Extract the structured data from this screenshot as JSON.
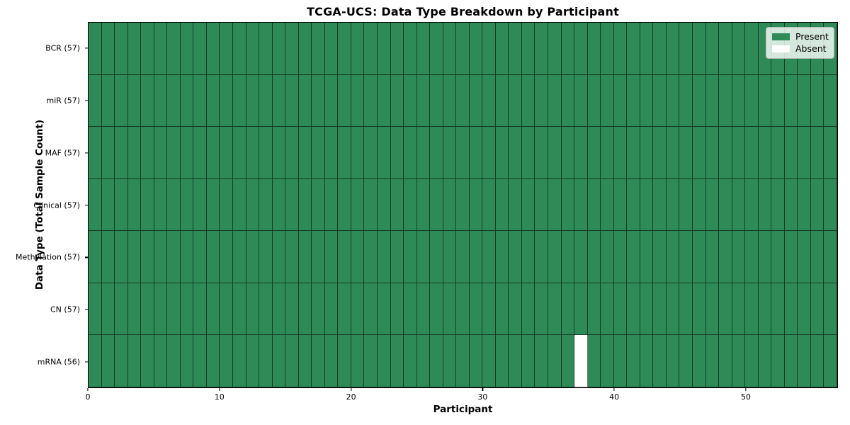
{
  "chart_data": {
    "type": "heatmap",
    "title": "TCGA-UCS: Data Type Breakdown by Participant",
    "xlabel": "Participant",
    "ylabel": "Data Type (Total Sample Count)",
    "xlim": [
      0,
      57
    ],
    "n_participants": 57,
    "x_ticks": [
      0,
      10,
      20,
      30,
      40,
      50
    ],
    "grid": true,
    "rows": [
      {
        "label": "BCR (57)",
        "total_samples": 57,
        "absent_participants": []
      },
      {
        "label": "miR (57)",
        "total_samples": 57,
        "absent_participants": []
      },
      {
        "label": "MAF (57)",
        "total_samples": 57,
        "absent_participants": []
      },
      {
        "label": "Clinical (57)",
        "total_samples": 57,
        "absent_participants": []
      },
      {
        "label": "Methylation (57)",
        "total_samples": 57,
        "absent_participants": []
      },
      {
        "label": "CN (57)",
        "total_samples": 57,
        "absent_participants": []
      },
      {
        "label": "mRNA (56)",
        "total_samples": 56,
        "absent_participants": [
          37
        ]
      }
    ],
    "legend": {
      "position": "upper right",
      "entries": [
        {
          "label": "Present",
          "color": "#2e8b57"
        },
        {
          "label": "Absent",
          "color": "#ffffff"
        }
      ]
    },
    "colors": {
      "present": "#2e8b57",
      "absent": "#ffffff",
      "cell_edge": "rgba(0,0,0,0.6)",
      "axis": "#000000"
    }
  }
}
